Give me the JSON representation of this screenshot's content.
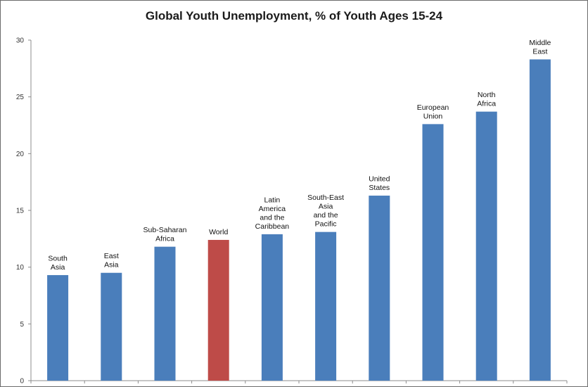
{
  "chart_data": {
    "type": "bar",
    "title": "Global Youth Unemployment, % of Youth Ages 15-24",
    "xlabel": "",
    "ylabel": "",
    "ylim": [
      0,
      30
    ],
    "yticks": [
      0,
      5,
      10,
      15,
      20,
      25,
      30
    ],
    "grid": false,
    "legend": "none",
    "categories": [
      [
        "South",
        "Asia"
      ],
      [
        "East",
        "Asia"
      ],
      [
        "Sub-Saharan",
        "Africa"
      ],
      [
        "World"
      ],
      [
        "Latin",
        "America",
        "and the",
        "Caribbean"
      ],
      [
        "South-East",
        "Asia",
        "and the",
        "Pacific"
      ],
      [
        "United",
        "States"
      ],
      [
        "European",
        "Union"
      ],
      [
        "North",
        "Africa"
      ],
      [
        "Middle",
        "East"
      ]
    ],
    "values": [
      9.3,
      9.5,
      11.8,
      12.4,
      12.9,
      13.1,
      16.3,
      22.6,
      23.7,
      28.3
    ],
    "colors": {
      "default": "#4a7ebb",
      "highlight": "#be4b48",
      "highlight_index": 3
    }
  }
}
